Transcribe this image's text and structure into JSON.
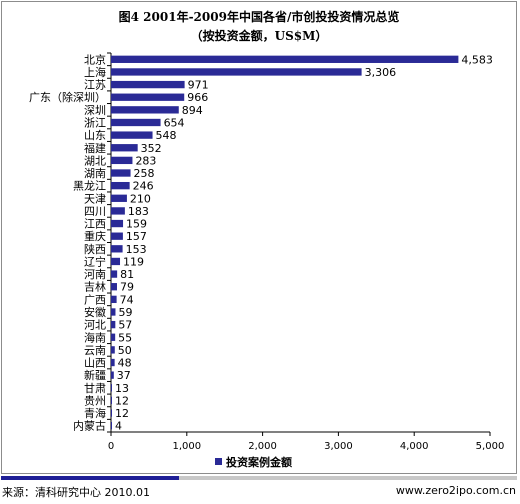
{
  "chart_data": {
    "type": "bar",
    "orientation": "horizontal",
    "title": "图4  2001年-2009年中国各省/市创投投资情况总览",
    "subtitle": "（按投资金额，US$M）",
    "categories": [
      "北京",
      "上海",
      "江苏",
      "广东（除深圳）",
      "深圳",
      "浙江",
      "山东",
      "福建",
      "湖北",
      "湖南",
      "黑龙江",
      "天津",
      "四川",
      "江西",
      "重庆",
      "陕西",
      "辽宁",
      "河南",
      "吉林",
      "广西",
      "安徽",
      "河北",
      "海南",
      "云南",
      "山西",
      "新疆",
      "甘肃",
      "贵州",
      "青海",
      "内蒙古"
    ],
    "series": [
      {
        "name": "投资案例金额",
        "color": "#2a2a96",
        "values": [
          4583,
          3306,
          971,
          966,
          894,
          654,
          548,
          352,
          283,
          258,
          246,
          210,
          183,
          159,
          157,
          153,
          119,
          81,
          79,
          74,
          59,
          57,
          55,
          50,
          48,
          37,
          13,
          12,
          12,
          4
        ],
        "labels": [
          "4,583",
          "3,306",
          "971",
          "966",
          "894",
          "654",
          "548",
          "352",
          "283",
          "258",
          "246",
          "210",
          "183",
          "159",
          "157",
          "153",
          "119",
          "81",
          "79",
          "74",
          "59",
          "57",
          "55",
          "50",
          "48",
          "37",
          "13",
          "12",
          "12",
          "4"
        ]
      }
    ],
    "xlim": [
      0,
      5000
    ],
    "xticks": [
      "0",
      "1,000",
      "2,000",
      "3,000",
      "4,000",
      "5,000"
    ],
    "grid": false,
    "legend": "bottom"
  },
  "footer": {
    "source": "来源：清科研究中心 2010.01",
    "site": "www.zero2ipo.com.cn"
  }
}
